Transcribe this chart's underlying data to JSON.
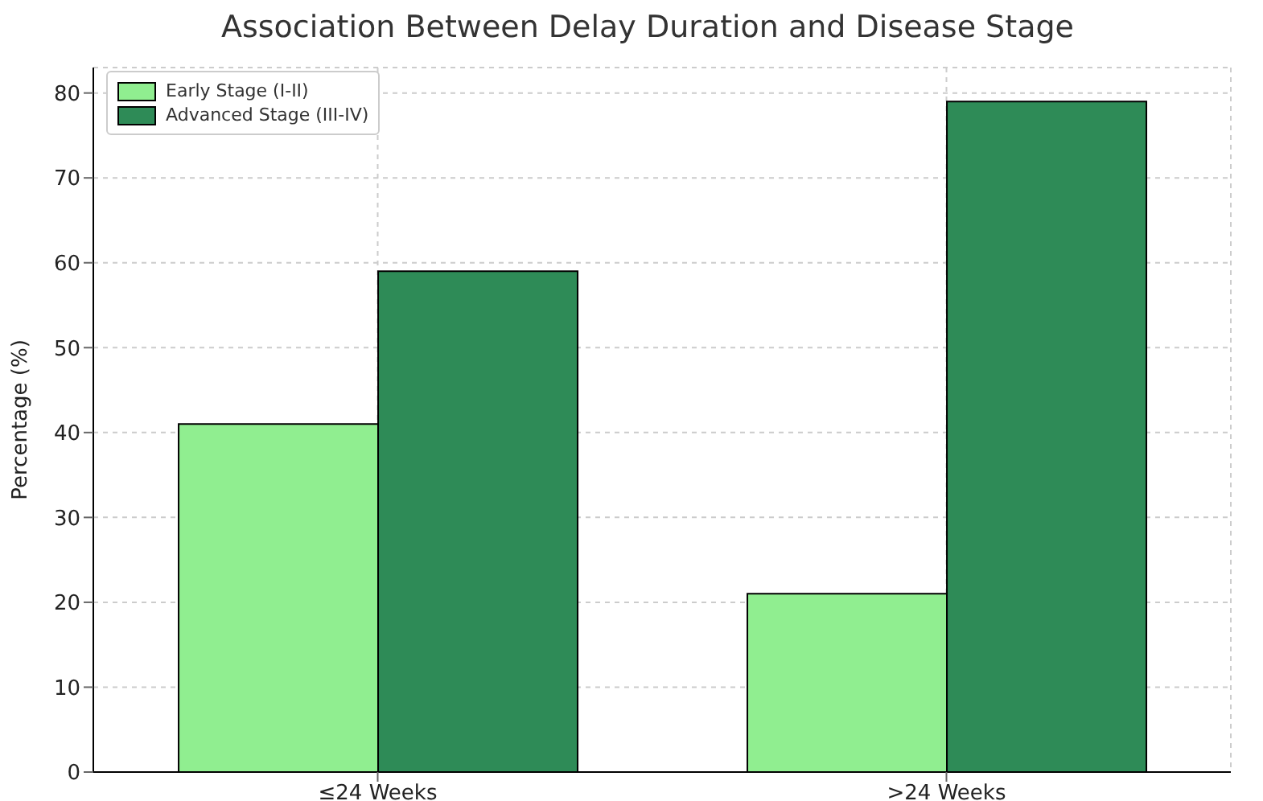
{
  "chart_data": {
    "type": "bar",
    "title": "Association Between Delay Duration and Disease Stage",
    "ylabel": "Percentage (%)",
    "categories": [
      "≤24 Weeks",
      ">24 Weeks"
    ],
    "series": [
      {
        "name": "Early Stage (I-II)",
        "color": "#90ee90",
        "values": [
          41,
          21
        ]
      },
      {
        "name": "Advanced Stage (III-IV)",
        "color": "#2e8b57",
        "values": [
          59,
          79
        ]
      }
    ],
    "ylim": [
      0,
      83
    ],
    "yticks": [
      0,
      10,
      20,
      30,
      40,
      50,
      60,
      70,
      80
    ],
    "grid": true,
    "legend": "top left"
  }
}
